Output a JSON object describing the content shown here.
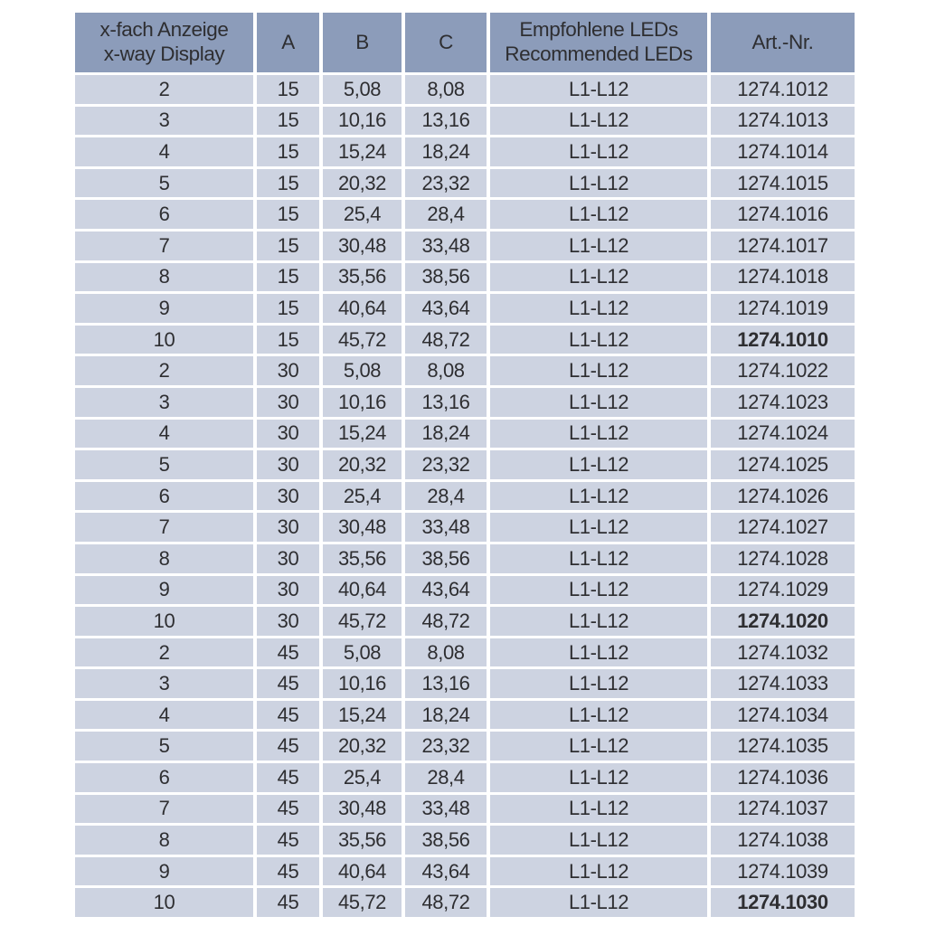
{
  "colors": {
    "page_bg": "#ffffff",
    "header_bg": "#8c9cba",
    "row_bg": "#cdd3e1",
    "separator": "#ffffff",
    "text": "#2e2e31"
  },
  "table": {
    "columns": [
      {
        "key": "x",
        "label_lines": [
          "x-fach Anzeige",
          "x-way Display"
        ]
      },
      {
        "key": "a",
        "label_lines": [
          "A"
        ]
      },
      {
        "key": "b",
        "label_lines": [
          "B"
        ]
      },
      {
        "key": "c",
        "label_lines": [
          "C"
        ]
      },
      {
        "key": "leds",
        "label_lines": [
          "Empfohlene LEDs",
          "Recommended LEDs"
        ]
      },
      {
        "key": "art",
        "label_lines": [
          "Art.-Nr."
        ]
      }
    ],
    "rows": [
      {
        "x": "2",
        "a": "15",
        "b": "5,08",
        "c": "8,08",
        "leds": "L1-L12",
        "art": "1274.1012",
        "art_bold": false
      },
      {
        "x": "3",
        "a": "15",
        "b": "10,16",
        "c": "13,16",
        "leds": "L1-L12",
        "art": "1274.1013",
        "art_bold": false
      },
      {
        "x": "4",
        "a": "15",
        "b": "15,24",
        "c": "18,24",
        "leds": "L1-L12",
        "art": "1274.1014",
        "art_bold": false
      },
      {
        "x": "5",
        "a": "15",
        "b": "20,32",
        "c": "23,32",
        "leds": "L1-L12",
        "art": "1274.1015",
        "art_bold": false
      },
      {
        "x": "6",
        "a": "15",
        "b": "25,4",
        "c": "28,4",
        "leds": "L1-L12",
        "art": "1274.1016",
        "art_bold": false
      },
      {
        "x": "7",
        "a": "15",
        "b": "30,48",
        "c": "33,48",
        "leds": "L1-L12",
        "art": "1274.1017",
        "art_bold": false
      },
      {
        "x": "8",
        "a": "15",
        "b": "35,56",
        "c": "38,56",
        "leds": "L1-L12",
        "art": "1274.1018",
        "art_bold": false
      },
      {
        "x": "9",
        "a": "15",
        "b": "40,64",
        "c": "43,64",
        "leds": "L1-L12",
        "art": "1274.1019",
        "art_bold": false
      },
      {
        "x": "10",
        "a": "15",
        "b": "45,72",
        "c": "48,72",
        "leds": "L1-L12",
        "art": "1274.1010",
        "art_bold": true
      },
      {
        "x": "2",
        "a": "30",
        "b": "5,08",
        "c": "8,08",
        "leds": "L1-L12",
        "art": "1274.1022",
        "art_bold": false
      },
      {
        "x": "3",
        "a": "30",
        "b": "10,16",
        "c": "13,16",
        "leds": "L1-L12",
        "art": "1274.1023",
        "art_bold": false
      },
      {
        "x": "4",
        "a": "30",
        "b": "15,24",
        "c": "18,24",
        "leds": "L1-L12",
        "art": "1274.1024",
        "art_bold": false
      },
      {
        "x": "5",
        "a": "30",
        "b": "20,32",
        "c": "23,32",
        "leds": "L1-L12",
        "art": "1274.1025",
        "art_bold": false
      },
      {
        "x": "6",
        "a": "30",
        "b": "25,4",
        "c": "28,4",
        "leds": "L1-L12",
        "art": "1274.1026",
        "art_bold": false
      },
      {
        "x": "7",
        "a": "30",
        "b": "30,48",
        "c": "33,48",
        "leds": "L1-L12",
        "art": "1274.1027",
        "art_bold": false
      },
      {
        "x": "8",
        "a": "30",
        "b": "35,56",
        "c": "38,56",
        "leds": "L1-L12",
        "art": "1274.1028",
        "art_bold": false
      },
      {
        "x": "9",
        "a": "30",
        "b": "40,64",
        "c": "43,64",
        "leds": "L1-L12",
        "art": "1274.1029",
        "art_bold": false
      },
      {
        "x": "10",
        "a": "30",
        "b": "45,72",
        "c": "48,72",
        "leds": "L1-L12",
        "art": "1274.1020",
        "art_bold": true
      },
      {
        "x": "2",
        "a": "45",
        "b": "5,08",
        "c": "8,08",
        "leds": "L1-L12",
        "art": "1274.1032",
        "art_bold": false
      },
      {
        "x": "3",
        "a": "45",
        "b": "10,16",
        "c": "13,16",
        "leds": "L1-L12",
        "art": "1274.1033",
        "art_bold": false
      },
      {
        "x": "4",
        "a": "45",
        "b": "15,24",
        "c": "18,24",
        "leds": "L1-L12",
        "art": "1274.1034",
        "art_bold": false
      },
      {
        "x": "5",
        "a": "45",
        "b": "20,32",
        "c": "23,32",
        "leds": "L1-L12",
        "art": "1274.1035",
        "art_bold": false
      },
      {
        "x": "6",
        "a": "45",
        "b": "25,4",
        "c": "28,4",
        "leds": "L1-L12",
        "art": "1274.1036",
        "art_bold": false
      },
      {
        "x": "7",
        "a": "45",
        "b": "30,48",
        "c": "33,48",
        "leds": "L1-L12",
        "art": "1274.1037",
        "art_bold": false
      },
      {
        "x": "8",
        "a": "45",
        "b": "35,56",
        "c": "38,56",
        "leds": "L1-L12",
        "art": "1274.1038",
        "art_bold": false
      },
      {
        "x": "9",
        "a": "45",
        "b": "40,64",
        "c": "43,64",
        "leds": "L1-L12",
        "art": "1274.1039",
        "art_bold": false
      },
      {
        "x": "10",
        "a": "45",
        "b": "45,72",
        "c": "48,72",
        "leds": "L1-L12",
        "art": "1274.1030",
        "art_bold": true
      }
    ]
  }
}
